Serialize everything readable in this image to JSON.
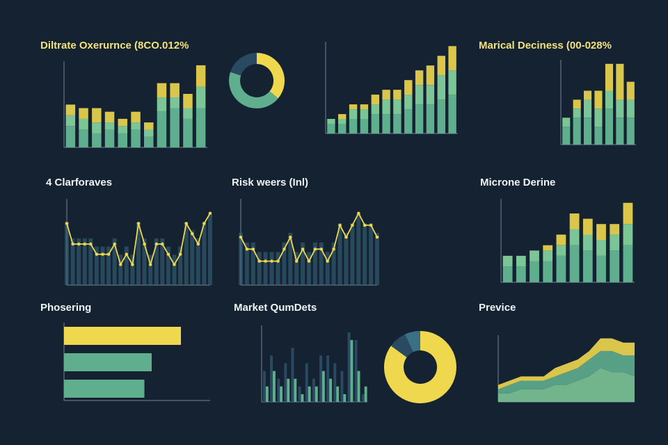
{
  "colors": {
    "background": "#152232",
    "yellow": "#f0d84e",
    "teal": "#5fae8e",
    "tealLight": "#7cc596",
    "blue": "#3b6f84",
    "navy": "#2a4a62",
    "text": "#eef2f4"
  },
  "titles": {
    "p1": "Diltrate Oxerurnce (8CO.012%",
    "p3": "Marical Deciness (00-028%",
    "p4": "4 Clarforaves",
    "p5": "Risk weers (Inl)",
    "p6": "Microne Derine",
    "p7": "Phosering",
    "p8": "Market QumDets",
    "p9": "Previce"
  },
  "chart_data": [
    {
      "id": "p1",
      "type": "bar",
      "title": "Diltrate Oxerurnce (8CO.012%",
      "series": [
        {
          "values": [
            6,
            5,
            4,
            5,
            4,
            5,
            3,
            10,
            11,
            8,
            11
          ]
        },
        {
          "values": [
            3,
            3,
            3,
            2,
            2,
            2,
            2,
            4,
            3,
            3,
            6
          ]
        },
        {
          "values": [
            3,
            3,
            4,
            3,
            2,
            3,
            2,
            4,
            4,
            4,
            6
          ]
        }
      ]
    },
    {
      "id": "p2",
      "type": "pie",
      "values": [
        36,
        44,
        20
      ]
    },
    {
      "id": "p3",
      "type": "bar",
      "series": [
        {
          "values": [
            2,
            2,
            3,
            3,
            4,
            4,
            4,
            5,
            6,
            6,
            7,
            8
          ]
        },
        {
          "values": [
            1,
            1,
            2,
            2,
            2,
            3,
            3,
            3,
            4,
            4,
            5,
            5
          ]
        },
        {
          "values": [
            0,
            1,
            1,
            1,
            2,
            2,
            2,
            3,
            3,
            4,
            4,
            5
          ]
        }
      ]
    },
    {
      "id": "p4",
      "type": "bar",
      "title": "Marical Deciness (00-028%",
      "series": [
        {
          "values": [
            2,
            3,
            3,
            2,
            4,
            3,
            3
          ]
        },
        {
          "values": [
            1,
            1,
            2,
            2,
            2,
            2,
            2
          ]
        },
        {
          "values": [
            0,
            1,
            1,
            2,
            3,
            4,
            2
          ]
        }
      ]
    },
    {
      "id": "p5",
      "type": "line",
      "title": "4 Clarforaves",
      "values": [
        6,
        4,
        4,
        4,
        4,
        3,
        3,
        3,
        4,
        2,
        3,
        2,
        6,
        4,
        2,
        4,
        4,
        3,
        2,
        3,
        6,
        5,
        4,
        6,
        7
      ]
    },
    {
      "id": "p6",
      "type": "line",
      "title": "Risk weers (Inl)",
      "values": [
        4,
        3,
        3,
        2,
        2,
        2,
        2,
        3,
        4,
        2,
        3,
        2,
        3,
        3,
        2,
        3,
        5,
        4,
        5,
        6,
        5,
        5,
        4
      ]
    },
    {
      "id": "p7",
      "type": "bar",
      "title": "Microne Derine",
      "series": [
        {
          "values": [
            3,
            3,
            4,
            4,
            5,
            7,
            6,
            5,
            6,
            7
          ]
        },
        {
          "values": [
            2,
            2,
            2,
            2,
            2,
            3,
            3,
            3,
            3,
            4
          ]
        },
        {
          "values": [
            0,
            0,
            0,
            1,
            2,
            3,
            3,
            3,
            2,
            4
          ]
        }
      ]
    },
    {
      "id": "p8",
      "type": "bar",
      "title": "Phosering",
      "orientation": "horizontal",
      "values": [
        80,
        60,
        55
      ]
    },
    {
      "id": "p9",
      "type": "bar",
      "title": "Market QumDets",
      "series": [
        {
          "values": [
            4,
            6,
            3,
            5,
            7,
            2,
            5,
            3,
            6,
            6,
            5,
            4,
            9,
            8,
            1
          ]
        },
        {
          "values": [
            2,
            4,
            2,
            3,
            3,
            1,
            2,
            2,
            4,
            3,
            2,
            1,
            8,
            4,
            2
          ]
        }
      ]
    },
    {
      "id": "p10",
      "type": "pie",
      "values": [
        85,
        8,
        7
      ]
    },
    {
      "id": "p11",
      "type": "area",
      "title": "Previce",
      "series": [
        {
          "values": [
            2,
            2,
            3,
            3,
            3,
            4,
            4,
            5,
            6,
            8,
            7,
            7,
            6
          ]
        },
        {
          "values": [
            1,
            2,
            2,
            2,
            2,
            2,
            3,
            3,
            4,
            4,
            5,
            4,
            5
          ]
        },
        {
          "values": [
            1,
            1,
            1,
            1,
            1,
            2,
            2,
            2,
            2,
            3,
            3,
            3,
            3
          ]
        }
      ]
    }
  ]
}
